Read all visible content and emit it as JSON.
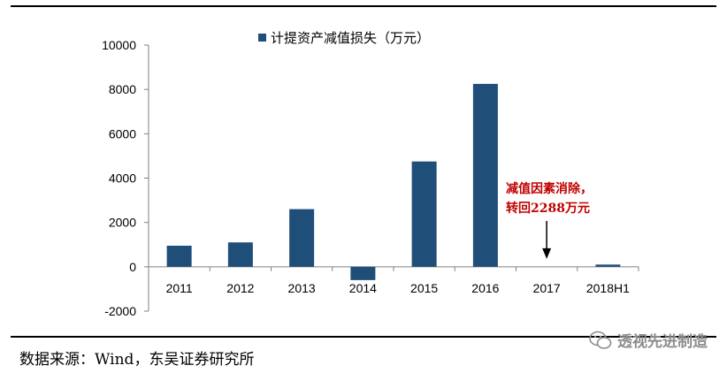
{
  "chart_data": {
    "type": "bar",
    "categories": [
      "2011",
      "2012",
      "2013",
      "2014",
      "2015",
      "2016",
      "2017",
      "2018H1"
    ],
    "series": [
      {
        "name": "计提资产减值损失（万元）",
        "values": [
          950,
          1100,
          2600,
          -600,
          4750,
          8250,
          0,
          100
        ],
        "color": "#1f4e79"
      }
    ],
    "ylim": [
      -2000,
      10000
    ],
    "yticks": [
      -2000,
      0,
      2000,
      4000,
      6000,
      8000,
      10000
    ],
    "grid": false,
    "legend_position": "top",
    "annotation": {
      "lines": [
        "减值因素消除，",
        "转回2288万元"
      ],
      "category": "2017",
      "color": "#c00000"
    }
  },
  "source_text": "数据来源：Wind，东吴证券研究所",
  "watermark_text": "透视先进制造",
  "watermark_icon": "wechat-icon"
}
